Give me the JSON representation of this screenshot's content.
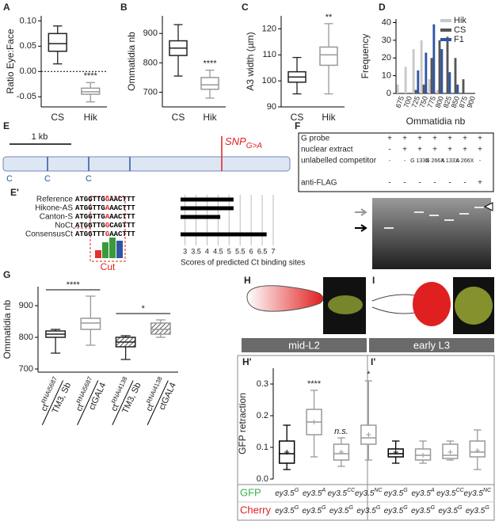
{
  "panel_labels": [
    "A",
    "B",
    "C",
    "D",
    "E",
    "E'",
    "F",
    "G",
    "H",
    "I",
    "H'",
    "I'"
  ],
  "chart_data": [
    {
      "type": "box",
      "ylabel": "Ratio Eye:Face",
      "categories": [
        "CS",
        "Hik"
      ],
      "colors": [
        "#222222",
        "#999999"
      ],
      "ylim": [
        -0.07,
        0.11
      ],
      "yticks": [
        {
          "value": -0.05,
          "label": "-0.05"
        },
        {
          "value": 0,
          "label": "0.00"
        },
        {
          "value": 0.05,
          "label": "0.05"
        },
        {
          "value": 0.1,
          "label": "0.10"
        }
      ],
      "reference_line": 0,
      "boxes": [
        {
          "min": 0.015,
          "q1": 0.04,
          "median": 0.055,
          "q3": 0.075,
          "max": 0.09
        },
        {
          "min": -0.06,
          "q1": -0.045,
          "median": -0.04,
          "q3": -0.033,
          "max": -0.022
        }
      ],
      "significance": [
        null,
        "****"
      ]
    },
    {
      "type": "box",
      "ylabel": "Ommatidia nb",
      "categories": [
        "CS",
        "Hik"
      ],
      "colors": [
        "#222222",
        "#999999"
      ],
      "ylim": [
        650,
        960
      ],
      "yticks": [
        700,
        800,
        900
      ],
      "boxes": [
        {
          "min": 755,
          "q1": 825,
          "median": 850,
          "q3": 875,
          "max": 930
        },
        {
          "min": 680,
          "q1": 710,
          "median": 725,
          "q3": 750,
          "max": 775
        }
      ],
      "significance": [
        null,
        "****"
      ]
    },
    {
      "type": "box",
      "ylabel": "A3 width (µm)",
      "categories": [
        "CS",
        "Hik"
      ],
      "colors": [
        "#222222",
        "#999999"
      ],
      "ylim": [
        90,
        125
      ],
      "yticks": [
        90,
        100,
        110,
        120
      ],
      "boxes": [
        {
          "min": 95,
          "q1": 99.5,
          "median": 101.5,
          "q3": 103.5,
          "max": 109
        },
        {
          "min": 95,
          "q1": 106,
          "median": 110,
          "q3": 113,
          "max": 122
        }
      ],
      "significance": [
        null,
        "**"
      ]
    },
    {
      "type": "bar",
      "xlabel": "Ommatidia nb",
      "ylabel": "Frequency",
      "categories": [
        "675",
        "700",
        "725",
        "750",
        "775",
        "800",
        "825",
        "850",
        "875",
        "900"
      ],
      "series": [
        {
          "name": "Hik",
          "color": "#c8c8c8",
          "values": [
            5,
            15,
            25,
            30,
            8,
            2,
            0,
            0,
            0,
            0
          ]
        },
        {
          "name": "CS",
          "color": "#555555",
          "values": [
            0,
            0,
            2,
            5,
            20,
            30,
            32,
            20,
            8,
            0
          ]
        },
        {
          "name": "F1",
          "color": "#2f55a4",
          "values": [
            0,
            0,
            13,
            23,
            39,
            25,
            12,
            5,
            0,
            0
          ]
        }
      ],
      "ylim": [
        0,
        42
      ],
      "yticks": [
        0,
        10,
        20,
        30,
        40
      ],
      "legend": "upper right"
    },
    {
      "type": "hbar",
      "categories": [
        "Reference",
        "Hikone-AS",
        "Canton-S",
        "NoCt",
        "ConsensusCt"
      ],
      "sequences": [
        "ATGGTTGGAACTTT",
        "ATGGTTGAAACTTT",
        "ATGGTTGAAACTTT",
        "ATGGTTGGCAGTTT",
        "ATGGTTTGAACTTT"
      ],
      "highlight_index": 7,
      "values": [
        5.2,
        5.2,
        4.6,
        null,
        6.7
      ],
      "color": "#000000",
      "xlim": [
        2.8,
        7
      ],
      "xticks": [
        3,
        3.5,
        4,
        4.5,
        5,
        5.5,
        6,
        6.5,
        7
      ],
      "xlabel": "Scores of predicted Ct binding sites",
      "logo_label": "Cut"
    },
    {
      "type": "box",
      "ylabel": "Ommatidia nb",
      "categories": [
        {
          "gene": "ct",
          "allele": "RNAi5687",
          "partner": "TM3, Sb"
        },
        {
          "gene": "ct",
          "allele": "RNAi5687",
          "partner": "ctGAL4"
        },
        {
          "gene": "ct",
          "allele": "RNAi4138",
          "partner": "TM3, Sb"
        },
        {
          "gene": "ct",
          "allele": "RNAi4138",
          "partner": "ctGAL4"
        }
      ],
      "colors": [
        "#222222",
        "#999999",
        "#222222",
        "#999999"
      ],
      "hatch": [
        false,
        false,
        true,
        true
      ],
      "ylim": [
        690,
        960
      ],
      "yticks": [
        700,
        800,
        900
      ],
      "boxes": [
        {
          "min": 750,
          "q1": 800,
          "median": 810,
          "q3": 820,
          "max": 825
        },
        {
          "min": 775,
          "q1": 825,
          "median": 845,
          "q3": 860,
          "max": 930
        },
        {
          "min": 730,
          "q1": 770,
          "median": 785,
          "q3": 800,
          "max": 805
        },
        {
          "min": 800,
          "q1": 810,
          "median": 825,
          "q3": 845,
          "max": 855
        }
      ],
      "significance": [
        null,
        "****",
        null,
        "*"
      ]
    },
    {
      "type": "box",
      "ylabel": "GFP retraction",
      "colors": [
        "#000000",
        "#999999",
        "#999999",
        "#999999",
        "#000000",
        "#999999",
        "#999999",
        "#999999"
      ],
      "ylim": [
        0,
        0.35
      ],
      "yticks": [
        {
          "value": 0,
          "label": "0.0"
        },
        {
          "value": 0.1,
          "label": "0.1"
        },
        {
          "value": 0.2,
          "label": "0.2"
        },
        {
          "value": 0.3,
          "label": "0.3"
        }
      ],
      "boxes": [
        {
          "min": 0.03,
          "q1": 0.05,
          "median": 0.08,
          "q3": 0.12,
          "max": 0.17,
          "mean": 0.085
        },
        {
          "min": 0.07,
          "q1": 0.14,
          "median": 0.18,
          "q3": 0.22,
          "max": 0.28,
          "mean": 0.18
        },
        {
          "min": 0.04,
          "q1": 0.06,
          "median": 0.08,
          "q3": 0.11,
          "max": 0.13,
          "mean": 0.085
        },
        {
          "min": 0.06,
          "q1": 0.11,
          "median": 0.13,
          "q3": 0.17,
          "max": 0.31,
          "mean": 0.14
        },
        {
          "min": 0.05,
          "q1": 0.07,
          "median": 0.08,
          "q3": 0.095,
          "max": 0.12,
          "mean": 0.085
        },
        {
          "min": 0.05,
          "q1": 0.06,
          "median": 0.075,
          "q3": 0.095,
          "max": 0.12,
          "mean": 0.075
        },
        {
          "min": 0.06,
          "q1": 0.065,
          "median": 0.075,
          "q3": 0.11,
          "max": 0.12,
          "mean": 0.085
        },
        {
          "min": 0.03,
          "q1": 0.07,
          "median": 0.085,
          "q3": 0.12,
          "max": 0.155,
          "mean": 0.09
        }
      ],
      "significance": [
        null,
        "****",
        "n.s.",
        "*",
        null,
        null,
        null,
        null
      ],
      "rows": [
        {
          "label": "GFP",
          "color": "#3cb44b",
          "genotypes": [
            {
              "base": "ey3.5",
              "sup": "G"
            },
            {
              "base": "ey3.5",
              "sup": "A"
            },
            {
              "base": "ey3.5",
              "sup": "CC"
            },
            {
              "base": "ey3.5",
              "sup": "NC"
            },
            {
              "base": "ey3.5",
              "sup": "G"
            },
            {
              "base": "ey3.5",
              "sup": "A"
            },
            {
              "base": "ey3.5",
              "sup": "CC"
            },
            {
              "base": "ey3.5",
              "sup": "NC"
            }
          ]
        },
        {
          "label": "Cherry",
          "color": "#e02020",
          "genotypes": [
            {
              "base": "ey3.5",
              "sup": "G"
            },
            {
              "base": "ey3.5",
              "sup": "G"
            },
            {
              "base": "ey3.5",
              "sup": "G"
            },
            {
              "base": "ey3.5",
              "sup": "G"
            },
            {
              "base": "ey3.5",
              "sup": "G"
            },
            {
              "base": "ey3.5",
              "sup": "G"
            },
            {
              "base": "ey3.5",
              "sup": "G"
            },
            {
              "base": "ey3.5",
              "sup": "G"
            }
          ]
        }
      ]
    }
  ],
  "gene_map": {
    "scale": "1 kb",
    "snp": "SNP",
    "snp_sub": "G>A",
    "sites": [
      "C",
      "C",
      "C"
    ]
  },
  "emsa": {
    "rows": [
      {
        "label": "G probe",
        "lanes": [
          "+",
          "+",
          "+",
          "+",
          "+",
          "+",
          "+"
        ]
      },
      {
        "label": "nuclear extract",
        "lanes": [
          "-",
          "+",
          "+",
          "+",
          "+",
          "+",
          "+"
        ]
      },
      {
        "label": "unlabelled competitor",
        "lanes": [
          "-",
          "-",
          "G 133X",
          "G 266X",
          "A 133X",
          "A 266X",
          "-"
        ]
      },
      {
        "label": "anti-FLAG",
        "lanes": [
          "-",
          "-",
          "-",
          "-",
          "-",
          "-",
          "+"
        ]
      }
    ]
  },
  "larva": {
    "stages": [
      "mid-L2",
      "early L3"
    ]
  }
}
